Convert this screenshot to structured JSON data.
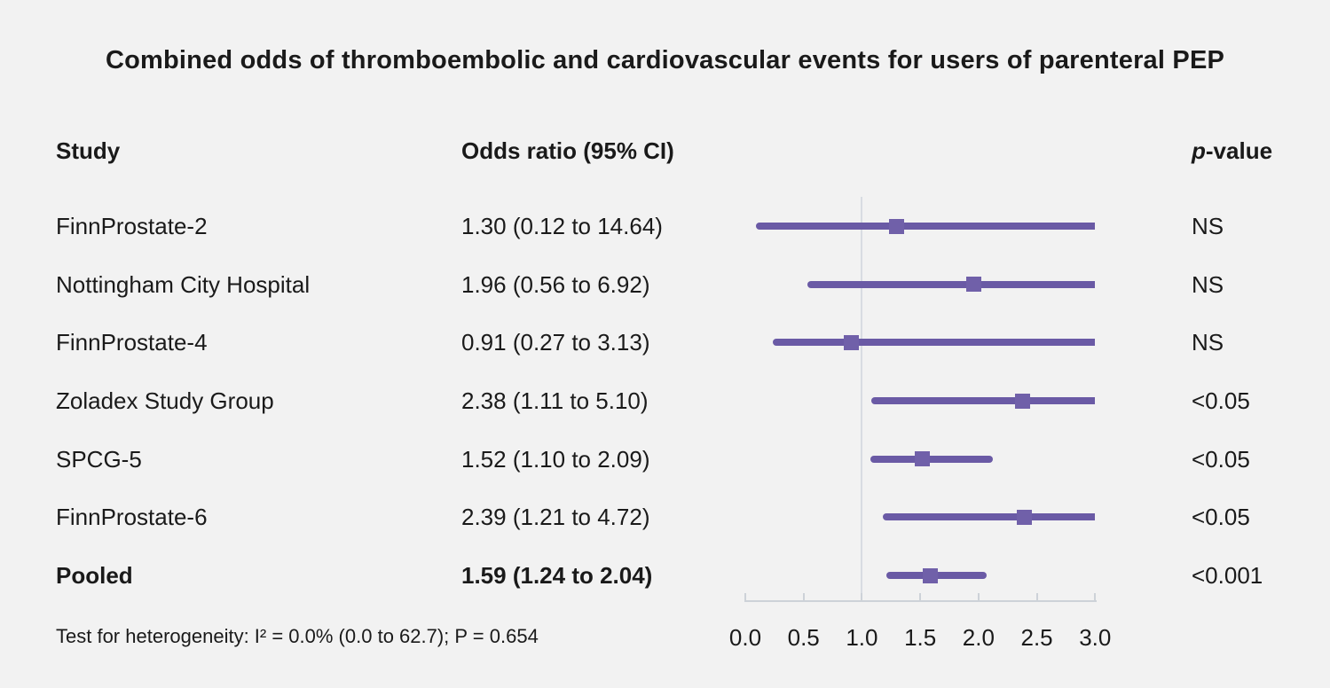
{
  "figure": {
    "title": "Combined odds of thromboembolic and cardiovascular events for users of parenteral PEP",
    "columns": {
      "study": "Study",
      "odds_ratio": "Odds ratio (95% CI)",
      "p_value_italic": "p",
      "p_value_rest": "-value"
    },
    "footer": "Test for heterogeneity: I² = 0.0% (0.0 to 62.7); P = 0.654"
  },
  "chart_data": {
    "type": "scatter",
    "subtype": "forest-plot",
    "title": "Combined odds of thromboembolic and cardiovascular events for users of parenteral PEP",
    "xlabel": "",
    "ylabel": "",
    "xlim": [
      0.0,
      3.0
    ],
    "xtick_labels": [
      "0.0",
      "0.5",
      "1.0",
      "1.5",
      "2.0",
      "2.5",
      "3.0"
    ],
    "xtick_values": [
      0.0,
      0.5,
      1.0,
      1.5,
      2.0,
      2.5,
      3.0
    ],
    "reference_line_x": 1.0,
    "ci_clip_max": 3.0,
    "grid": false,
    "legend": null,
    "rows": [
      {
        "study": "FinnProstate-2",
        "or_text": "1.30 (0.12 to 14.64)",
        "estimate": 1.3,
        "ci_low": 0.12,
        "ci_high": 14.64,
        "p": "NS",
        "bold": false
      },
      {
        "study": "Nottingham City Hospital",
        "or_text": "1.96 (0.56 to 6.92)",
        "estimate": 1.96,
        "ci_low": 0.56,
        "ci_high": 6.92,
        "p": "NS",
        "bold": false
      },
      {
        "study": "FinnProstate-4",
        "or_text": "0.91 (0.27 to 3.13)",
        "estimate": 0.91,
        "ci_low": 0.27,
        "ci_high": 3.13,
        "p": "NS",
        "bold": false
      },
      {
        "study": "Zoladex Study Group",
        "or_text": "2.38 (1.11 to 5.10)",
        "estimate": 2.38,
        "ci_low": 1.11,
        "ci_high": 5.1,
        "p": "<0.05",
        "bold": false
      },
      {
        "study": "SPCG-5",
        "or_text": "1.52 (1.10 to 2.09)",
        "estimate": 1.52,
        "ci_low": 1.1,
        "ci_high": 2.09,
        "p": "<0.05",
        "bold": false
      },
      {
        "study": "FinnProstate-6",
        "or_text": "2.39 (1.21 to 4.72)",
        "estimate": 2.39,
        "ci_low": 1.21,
        "ci_high": 4.72,
        "p": "<0.05",
        "bold": false
      },
      {
        "study": "Pooled",
        "or_text": "1.59 (1.24 to 2.04)",
        "estimate": 1.59,
        "ci_low": 1.24,
        "ci_high": 2.04,
        "p": "<0.001",
        "bold": true
      }
    ],
    "colors": {
      "background": "#f2f2f2",
      "text": "#1a1a1a",
      "ci_line": "#6a5aa5",
      "marker": "#7060a9",
      "reference_line": "#d8dce2",
      "axis": "#cdd2d8"
    }
  }
}
